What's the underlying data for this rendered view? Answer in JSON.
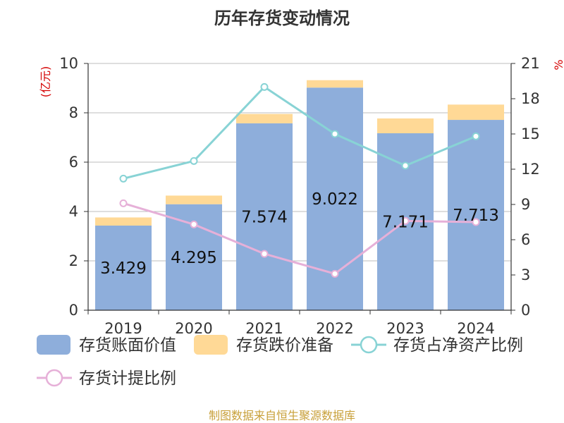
{
  "chart_data": {
    "type": "bar",
    "title": "历年存货变动情况",
    "categories": [
      "2019",
      "2020",
      "2021",
      "2022",
      "2023",
      "2024"
    ],
    "y_left": {
      "unit": "(亿元)",
      "range": [
        0,
        10
      ],
      "ticks": [
        "0",
        "2",
        "4",
        "6",
        "8",
        "10"
      ]
    },
    "y_right": {
      "unit": "%",
      "range": [
        0,
        21
      ],
      "ticks": [
        "0",
        "3",
        "6",
        "9",
        "12",
        "15",
        "18",
        "21"
      ]
    },
    "series": [
      {
        "name": "存货账面价值",
        "kind": "bar",
        "axis": "left",
        "color": "#8eaedb",
        "values": [
          3.429,
          4.295,
          7.574,
          9.022,
          7.171,
          7.713
        ],
        "labels": [
          "3.429",
          "4.295",
          "7.574",
          "9.022",
          "7.171",
          "7.713"
        ]
      },
      {
        "name": "存货跌价准备",
        "kind": "bar-stacked",
        "axis": "left",
        "color": "#ffd996",
        "values": [
          0.33,
          0.35,
          0.38,
          0.3,
          0.6,
          0.62
        ]
      },
      {
        "name": "存货占净资产比例",
        "kind": "line",
        "axis": "right",
        "color": "#88d3d5",
        "values": [
          11.2,
          12.7,
          19.0,
          15.0,
          12.3,
          14.8
        ]
      },
      {
        "name": "存货计提比例",
        "kind": "line",
        "axis": "right",
        "color": "#e6b0d8",
        "values": [
          9.1,
          7.3,
          4.8,
          3.1,
          7.6,
          7.5
        ]
      }
    ],
    "grid": true,
    "legend_position": "bottom"
  },
  "footer": {
    "source": "制图数据来自恒生聚源数据库"
  }
}
